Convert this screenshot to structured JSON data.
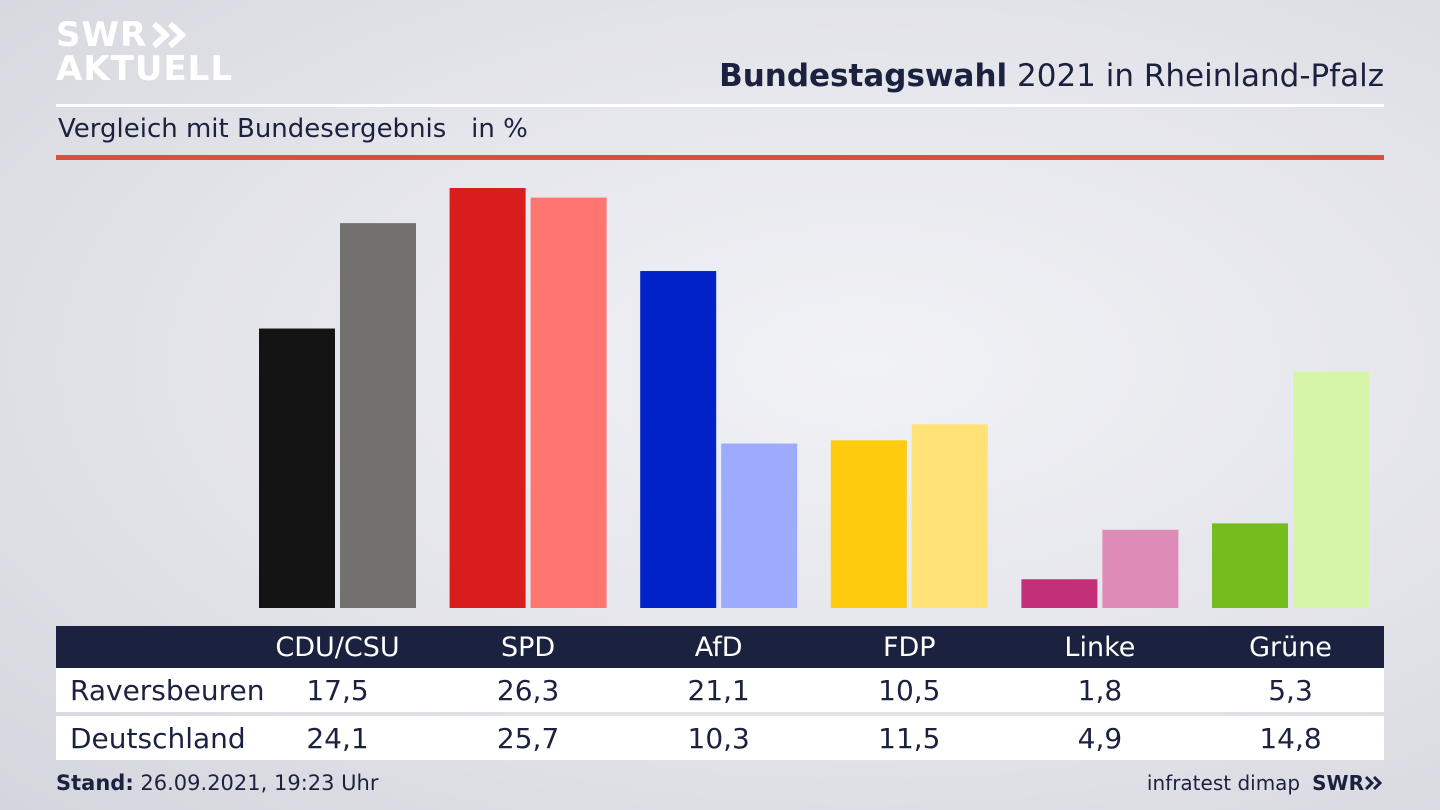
{
  "logo": {
    "line1": "SWR",
    "line2": "AKTUELL"
  },
  "header": {
    "title_bold": "Bundestagswahl",
    "title_rest": " 2021 in Rheinland-Pfalz",
    "subtitle": "Vergleich mit Bundesergebnis   in %"
  },
  "chart_data": {
    "type": "bar",
    "title": "Bundestagswahl 2021 in Rheinland-Pfalz",
    "subtitle": "Vergleich mit Bundesergebnis in %",
    "categories": [
      "CDU/CSU",
      "SPD",
      "AfD",
      "FDP",
      "Linke",
      "Grüne"
    ],
    "series": [
      {
        "name": "Raversbeuren",
        "values": [
          17.5,
          26.3,
          21.1,
          10.5,
          1.8,
          5.3
        ],
        "colors": [
          "#141414",
          "#d91c1c",
          "#0022c8",
          "#fecb0e",
          "#c2307a",
          "#75bc1e"
        ]
      },
      {
        "name": "Deutschland",
        "values": [
          24.1,
          25.7,
          10.3,
          11.5,
          4.9,
          14.8
        ],
        "colors": [
          "#727170",
          "#ff7671",
          "#9dabff",
          "#ffe176",
          "#df8bb8",
          "#d6f5a9"
        ]
      }
    ],
    "ylim": [
      0,
      26.3
    ],
    "grid": false,
    "legend": "table below chart"
  },
  "footer": {
    "stand_label": "Stand:",
    "stand_value": " 26.09.2021, 19:23 Uhr",
    "source": "infratest dimap",
    "brand": "SWR"
  }
}
